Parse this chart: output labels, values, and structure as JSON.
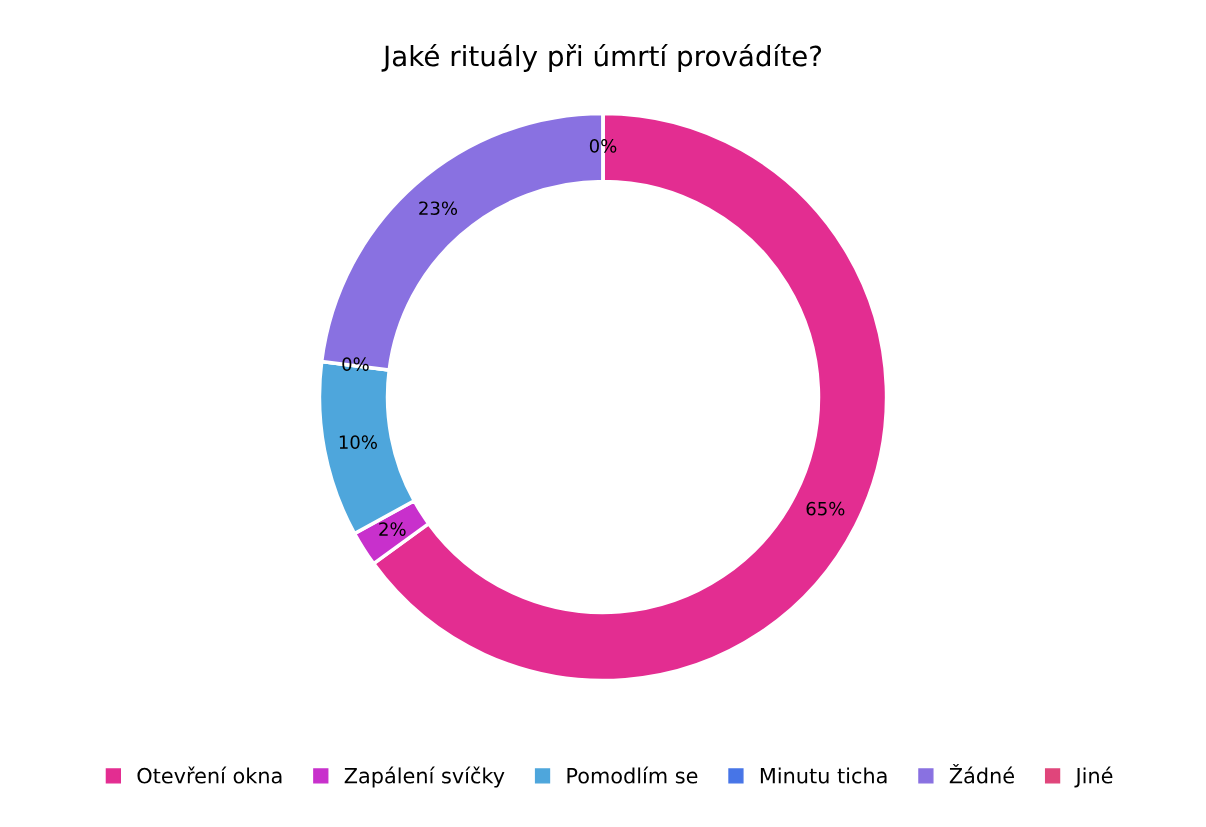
{
  "chart_data": {
    "type": "donut",
    "title": "Jaké rituály při úmrtí provádíte?",
    "categories": [
      "Otevření okna",
      "Zapálení svíčky",
      "Pomodlím se",
      "Minutu ticha",
      "Žádné",
      "Jiné"
    ],
    "values": [
      65,
      2,
      10,
      0,
      23,
      0
    ],
    "value_labels": [
      "65%",
      "2%",
      "10%",
      "0%",
      "23%",
      "0%"
    ],
    "colors": [
      "#e32d91",
      "#c830cc",
      "#4ea6dc",
      "#4775e7",
      "#8971e1",
      "#e0457b"
    ],
    "legend": "bottom"
  }
}
